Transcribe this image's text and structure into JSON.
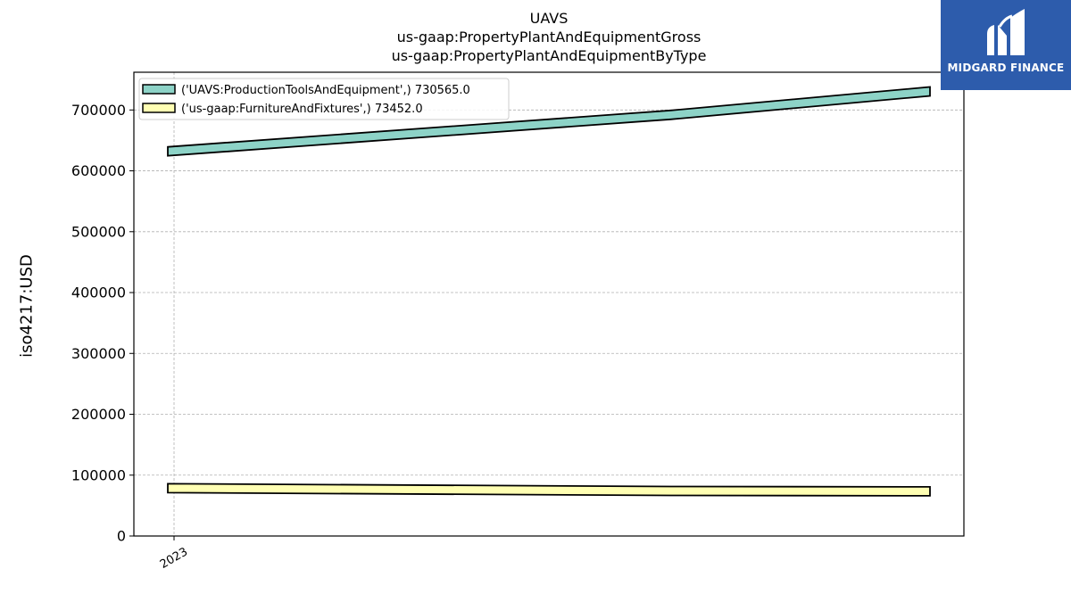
{
  "header": {
    "title_lines": [
      "UAVS",
      "us-gaap:PropertyPlantAndEquipmentGross",
      "us-gaap:PropertyPlantAndEquipmentByType"
    ]
  },
  "logo": {
    "text": "MIDGARD FINANCE",
    "color": "#2d5cac"
  },
  "chart_data": {
    "type": "area",
    "title": "UAVS\nus-gaap:PropertyPlantAndEquipmentGross\nus-gaap:PropertyPlantAndEquipmentByType",
    "xlabel": "",
    "ylabel": "iso4217:USD",
    "x_tick_labels": [
      "2023"
    ],
    "y_ticks": [
      0,
      100000,
      200000,
      300000,
      400000,
      500000,
      600000,
      700000
    ],
    "y_tick_labels": [
      "0",
      "100000",
      "200000",
      "300000",
      "400000",
      "500000",
      "600000",
      "700000"
    ],
    "ylim": [
      0,
      762000
    ],
    "grid": true,
    "legend_position": "top-left",
    "series": [
      {
        "name": "('UAVS:ProductionToolsAndEquipment',) 730565.0",
        "color": "#8dd3c7",
        "points": [
          [
            0,
            632000
          ],
          [
            0.66,
            692000
          ],
          [
            1,
            730565
          ]
        ]
      },
      {
        "name": "('us-gaap:FurnitureAndFixtures',) 73452.0",
        "color": "#ffffb3",
        "points": [
          [
            0,
            78500
          ],
          [
            0.66,
            74000
          ],
          [
            1,
            73452
          ]
        ]
      }
    ]
  }
}
